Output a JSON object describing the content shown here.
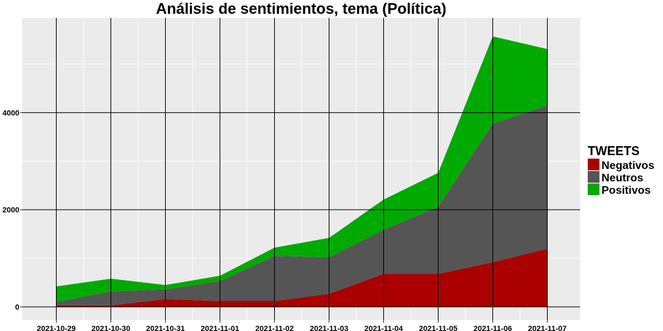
{
  "chart_data": {
    "type": "area",
    "stacked": true,
    "title": "Análisis de sentimientos, tema (Política)",
    "xlabel": "",
    "ylabel": "",
    "categories": [
      "2021-10-29",
      "2021-10-30",
      "2021-10-31",
      "2021-11-01",
      "2021-11-02",
      "2021-11-03",
      "2021-11-04",
      "2021-11-05",
      "2021-11-06",
      "2021-11-07"
    ],
    "ylim": [
      -270,
      5950
    ],
    "yticks": [
      0,
      2000,
      4000
    ],
    "ytick_labels": [
      "0",
      "2000",
      "4000"
    ],
    "grid": true,
    "legend": {
      "title": "TWEETS",
      "position": "right"
    },
    "series": [
      {
        "name": "Negativos",
        "color": "#AA0000",
        "values": [
          30,
          30,
          160,
          120,
          120,
          270,
          680,
          680,
          920,
          1200
        ]
      },
      {
        "name": "Neutros",
        "color": "#555555",
        "values": [
          70,
          290,
          200,
          410,
          930,
          750,
          910,
          1380,
          2850,
          2950
        ]
      },
      {
        "name": "Positivos",
        "color": "#00AA00",
        "values": [
          320,
          260,
          90,
          110,
          170,
          400,
          620,
          700,
          1800,
          1160
        ]
      }
    ]
  }
}
